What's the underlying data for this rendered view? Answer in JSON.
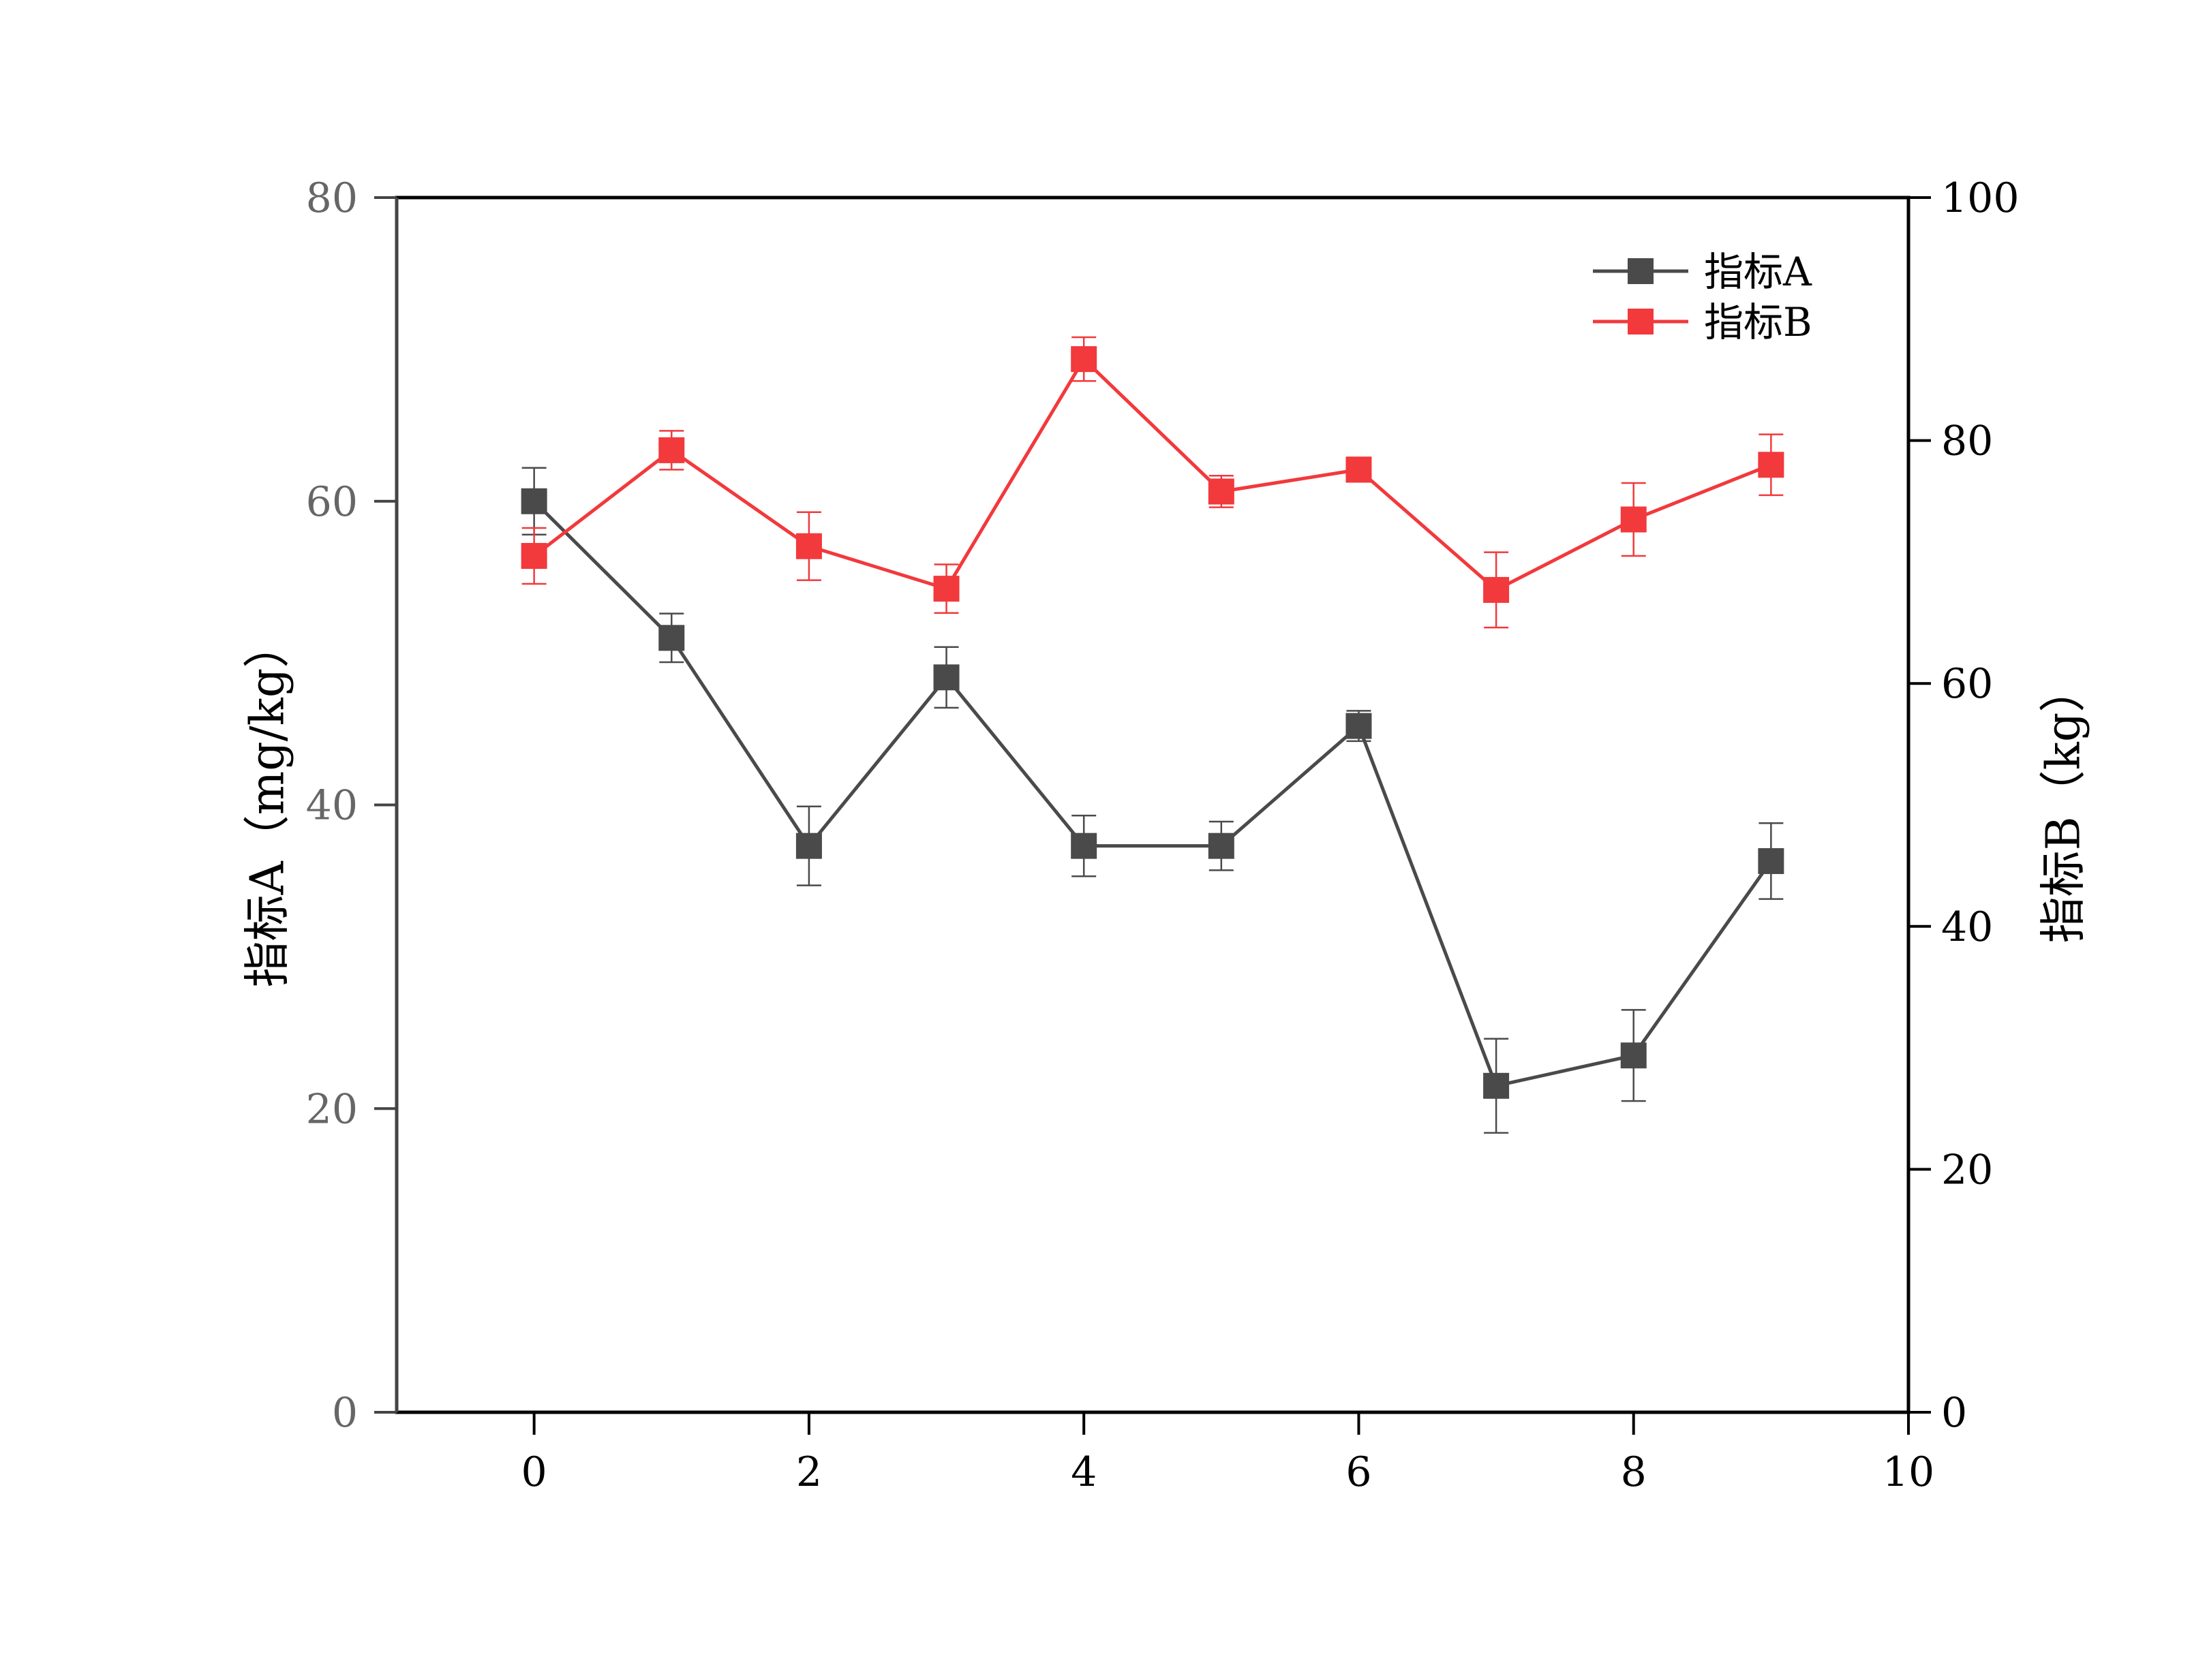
{
  "chart_data": {
    "type": "line",
    "title": "",
    "xlabel": "",
    "ylabel": "指标A（mg/kg）",
    "y2label": "指标B（kg）",
    "xlim": [
      -1,
      10
    ],
    "ylim": [
      0,
      80
    ],
    "y2lim": [
      0,
      100
    ],
    "x_ticks": [
      0,
      2,
      4,
      6,
      8,
      10
    ],
    "y_ticks": [
      0,
      20,
      40,
      60,
      80
    ],
    "y2_ticks": [
      0,
      20,
      40,
      60,
      80,
      100
    ],
    "grid": false,
    "legend_position": "top-right",
    "x": [
      0,
      1,
      2,
      3,
      4,
      5,
      6,
      7,
      8,
      9
    ],
    "series": [
      {
        "name": "指标A",
        "axis": "left",
        "color": "#4a4a4a",
        "marker": "square",
        "values": [
          60,
          51,
          37.3,
          48.4,
          37.3,
          37.3,
          45.2,
          21.5,
          23.5,
          36.3
        ],
        "errors": [
          2.2,
          1.6,
          2.6,
          2.0,
          2.0,
          1.6,
          1.0,
          3.1,
          3.0,
          2.5
        ]
      },
      {
        "name": "指标B",
        "axis": "right",
        "color": "#f2393c",
        "marker": "square",
        "values": [
          70.5,
          79.2,
          71.3,
          67.8,
          86.7,
          75.8,
          77.6,
          67.7,
          73.5,
          78
        ],
        "errors": [
          2.3,
          1.6,
          2.8,
          2.0,
          1.8,
          1.3,
          1.0,
          3.1,
          3.0,
          2.5
        ]
      }
    ]
  }
}
